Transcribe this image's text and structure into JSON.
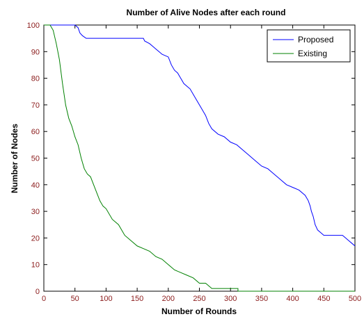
{
  "chart_data": {
    "type": "line",
    "title": "Number of Alive Nodes after each round",
    "xlabel": "Number of Rounds",
    "ylabel": "Number of Nodes",
    "xlim": [
      0,
      500
    ],
    "ylim": [
      0,
      100
    ],
    "x_ticks": [
      "0",
      "50",
      "100",
      "150",
      "200",
      "250",
      "300",
      "350",
      "400",
      "450",
      "500"
    ],
    "y_ticks": [
      "0",
      "10",
      "20",
      "30",
      "40",
      "50",
      "60",
      "70",
      "80",
      "90",
      "100"
    ],
    "grid": false,
    "legend_position": "top-right",
    "series": [
      {
        "name": "Proposed",
        "color": "#0000ff",
        "points": [
          [
            0,
            100
          ],
          [
            50,
            100
          ],
          [
            55,
            99
          ],
          [
            58,
            97
          ],
          [
            62,
            96
          ],
          [
            68,
            95
          ],
          [
            100,
            95
          ],
          [
            150,
            95
          ],
          [
            160,
            95
          ],
          [
            162,
            94
          ],
          [
            170,
            93
          ],
          [
            175,
            92
          ],
          [
            180,
            91
          ],
          [
            185,
            90
          ],
          [
            190,
            89
          ],
          [
            200,
            88
          ],
          [
            205,
            85
          ],
          [
            210,
            83
          ],
          [
            215,
            82
          ],
          [
            220,
            80
          ],
          [
            225,
            78
          ],
          [
            230,
            77
          ],
          [
            235,
            76
          ],
          [
            240,
            74
          ],
          [
            245,
            72
          ],
          [
            250,
            70
          ],
          [
            255,
            68
          ],
          [
            260,
            66
          ],
          [
            265,
            63
          ],
          [
            270,
            61
          ],
          [
            280,
            59
          ],
          [
            290,
            58
          ],
          [
            300,
            56
          ],
          [
            310,
            55
          ],
          [
            320,
            53
          ],
          [
            330,
            51
          ],
          [
            340,
            49
          ],
          [
            350,
            47
          ],
          [
            360,
            46
          ],
          [
            370,
            44
          ],
          [
            380,
            42
          ],
          [
            390,
            40
          ],
          [
            400,
            39
          ],
          [
            410,
            38
          ],
          [
            420,
            36
          ],
          [
            425,
            34
          ],
          [
            428,
            32
          ],
          [
            430,
            30
          ],
          [
            433,
            28
          ],
          [
            436,
            25
          ],
          [
            440,
            23
          ],
          [
            445,
            22
          ],
          [
            450,
            21
          ],
          [
            480,
            21
          ],
          [
            485,
            20
          ],
          [
            490,
            19
          ],
          [
            495,
            18
          ],
          [
            500,
            17
          ]
        ]
      },
      {
        "name": "Existing",
        "color": "#008000",
        "points": [
          [
            0,
            100
          ],
          [
            10,
            100
          ],
          [
            15,
            98
          ],
          [
            20,
            93
          ],
          [
            25,
            87
          ],
          [
            30,
            78
          ],
          [
            35,
            70
          ],
          [
            40,
            65
          ],
          [
            45,
            62
          ],
          [
            50,
            58
          ],
          [
            55,
            55
          ],
          [
            60,
            50
          ],
          [
            65,
            46
          ],
          [
            70,
            44
          ],
          [
            75,
            43
          ],
          [
            80,
            40
          ],
          [
            85,
            37
          ],
          [
            90,
            34
          ],
          [
            95,
            32
          ],
          [
            100,
            31
          ],
          [
            110,
            27
          ],
          [
            120,
            25
          ],
          [
            125,
            23
          ],
          [
            130,
            21
          ],
          [
            140,
            19
          ],
          [
            150,
            17
          ],
          [
            160,
            16
          ],
          [
            170,
            15
          ],
          [
            180,
            13
          ],
          [
            190,
            12
          ],
          [
            200,
            10
          ],
          [
            210,
            8
          ],
          [
            220,
            7
          ],
          [
            230,
            6
          ],
          [
            240,
            5
          ],
          [
            250,
            3
          ],
          [
            260,
            3
          ],
          [
            270,
            1
          ],
          [
            280,
            1
          ],
          [
            290,
            1
          ],
          [
            312,
            1
          ],
          [
            312,
            0
          ],
          [
            500,
            0
          ]
        ]
      }
    ]
  }
}
